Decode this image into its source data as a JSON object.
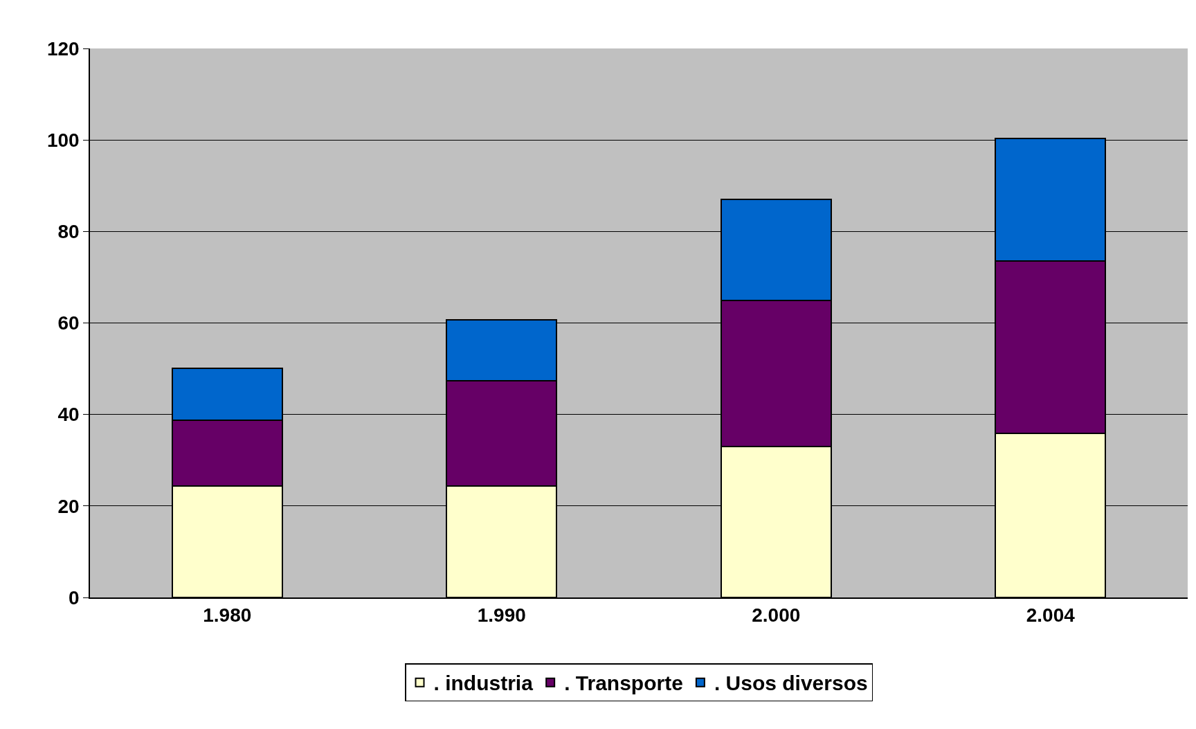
{
  "chart_data": {
    "type": "bar",
    "stacked": true,
    "categories": [
      "1.980",
      "1.990",
      "2.000",
      "2.004"
    ],
    "series": [
      {
        "name": ". industria",
        "color": "#ffffcc",
        "values": [
          24.3,
          24.3,
          33.0,
          35.9
        ]
      },
      {
        "name": ". Transporte",
        "color": "#660066",
        "values": [
          14.4,
          23.0,
          31.9,
          37.7
        ]
      },
      {
        "name": ". Usos diversos",
        "color": "#0066cc",
        "values": [
          11.4,
          13.4,
          22.1,
          26.8
        ]
      }
    ],
    "ylim": [
      0,
      120
    ],
    "yticks": [
      0,
      20,
      40,
      60,
      80,
      100,
      120
    ],
    "grid": "y",
    "legend": "bottom"
  }
}
